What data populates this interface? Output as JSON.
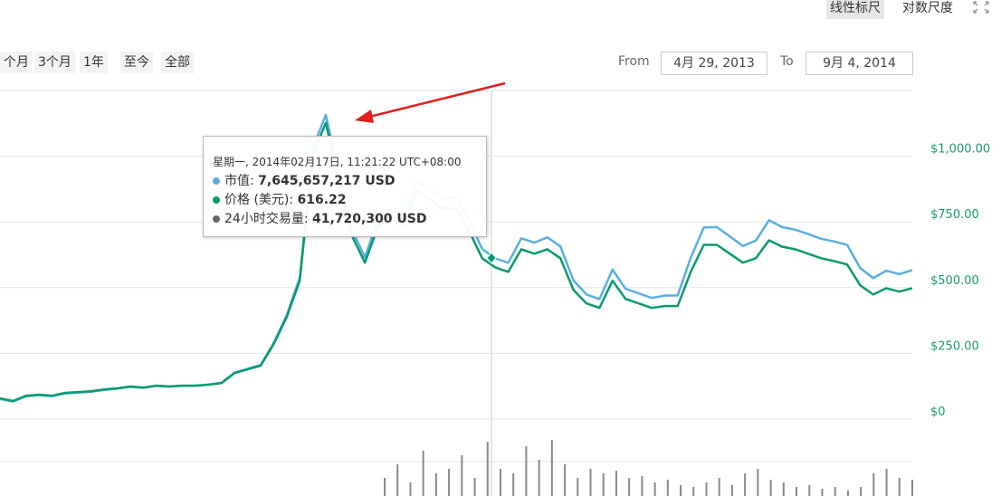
{
  "toolbar": {
    "scales": [
      "线性标尺",
      "对数尺度"
    ],
    "ranges": [
      "个月",
      "3个月",
      "1年",
      "至今",
      "全部"
    ],
    "from_label": "From",
    "from_value": "4月 29, 2013",
    "to_label": "To",
    "to_value": "9月 4, 2014"
  },
  "tooltip": {
    "header": "星期一, 2014年02月17日, 11:21:22 UTC+08:00",
    "rows": [
      {
        "label": "市值:",
        "value": "7,645,657,217 USD",
        "color": "#5aafe0"
      },
      {
        "label": "价格 (美元):",
        "value": "616.22",
        "color": "#0a9a6e"
      },
      {
        "label": "24小时交易量:",
        "value": "41,720,300 USD",
        "color": "#666666"
      }
    ]
  },
  "chart_data": [
    {
      "type": "line",
      "ylim": [
        0,
        1250
      ],
      "yticks": [
        {
          "value": 0,
          "label": "$0"
        },
        {
          "value": 250,
          "label": "$250.00"
        },
        {
          "value": 500,
          "label": "$500.00"
        },
        {
          "value": 750,
          "label": "$750.00"
        },
        {
          "value": 1000,
          "label": "$1,000.00"
        }
      ],
      "y2lim": [
        0,
        14375000000
      ],
      "grid": true,
      "series": [
        {
          "color": "#5aafe0",
          "axis": "y2",
          "values": [
            877000000.0,
            768000000.0,
            993000000.0,
            1040000000.0,
            998000000.0,
            1120000000.0,
            1160000000.0,
            1200000000.0,
            1280000000.0,
            1330000000.0,
            1410000000.0,
            1370000000.0,
            1450000000.0,
            1420000000.0,
            1460000000.0,
            1460000000.0,
            1510000000.0,
            1590000000.0,
            2030000000.0,
            2200000000.0,
            2370000000.0,
            3330000000.0,
            4550000000.0,
            6190000000.0,
            11870000000.0,
            13310000000.0,
            10700000000.0,
            8290000000.0,
            7080000000.0,
            8730000000.0,
            9160000000.0,
            8780000000.0,
            10440000000.0,
            10050000000.0,
            9670000000.0,
            9690000000.0,
            8670000000.0,
            7440000000.0,
            7030000000.0,
            6840000000.0,
            7910000000.0,
            7720000000.0,
            7950000000.0,
            7550000000.0,
            6070000000.0,
            5450000000.0,
            5250000000.0,
            6540000000.0,
            5700000000.0,
            5500000000.0,
            5300000000.0,
            5400000000.0,
            5410000000.0,
            7060000000.0,
            8380000000.0,
            8400000000.0,
            7990000000.0,
            7570000000.0,
            7810000000.0,
            8700000000.0,
            8400000000.0,
            8290000000.0,
            8100000000.0,
            7890000000.0,
            7770000000.0,
            7620000000.0,
            6610000000.0,
            6170000000.0,
            6490000000.0,
            6340000000.0,
            6520000000.0
          ]
        },
        {
          "color": "#0a9a6e",
          "values": [
            79,
            69,
            89,
            93,
            89,
            100,
            103,
            106,
            113,
            117,
            124,
            120,
            127,
            124,
            127,
            127,
            131,
            137,
            175,
            189,
            203,
            285,
            388,
            526,
            1007,
            1127,
            904,
            698,
            595,
            732,
            766,
            732,
            869,
            835,
            801,
            801,
            715,
            612,
            577,
            560,
            646,
            629,
            646,
            612,
            491,
            440,
            423,
            526,
            457,
            440,
            423,
            430,
            430,
            560,
            663,
            663,
            629,
            595,
            612,
            680,
            656,
            646,
            629,
            612,
            601,
            588,
            509,
            474,
            498,
            485,
            498
          ]
        }
      ]
    },
    {
      "type": "bar",
      "color": "#888888",
      "ylim": [
        0,
        85000000
      ],
      "values": [
        20000000,
        35000000,
        15000000,
        50000000,
        25000000,
        30000000,
        45000000,
        20000000,
        60000000,
        30000000,
        25000000,
        55000000,
        40000000,
        62000000,
        35000000,
        20000000,
        30000000,
        25000000,
        28000000,
        20000000,
        22000000,
        15000000,
        18000000,
        12000000,
        10000000,
        15000000,
        20000000,
        12000000,
        25000000,
        30000000,
        18000000,
        15000000,
        10000000,
        12000000,
        8000000,
        10000000,
        6000000,
        10000000,
        25000000,
        30000000,
        20000000,
        18000000
      ]
    }
  ]
}
